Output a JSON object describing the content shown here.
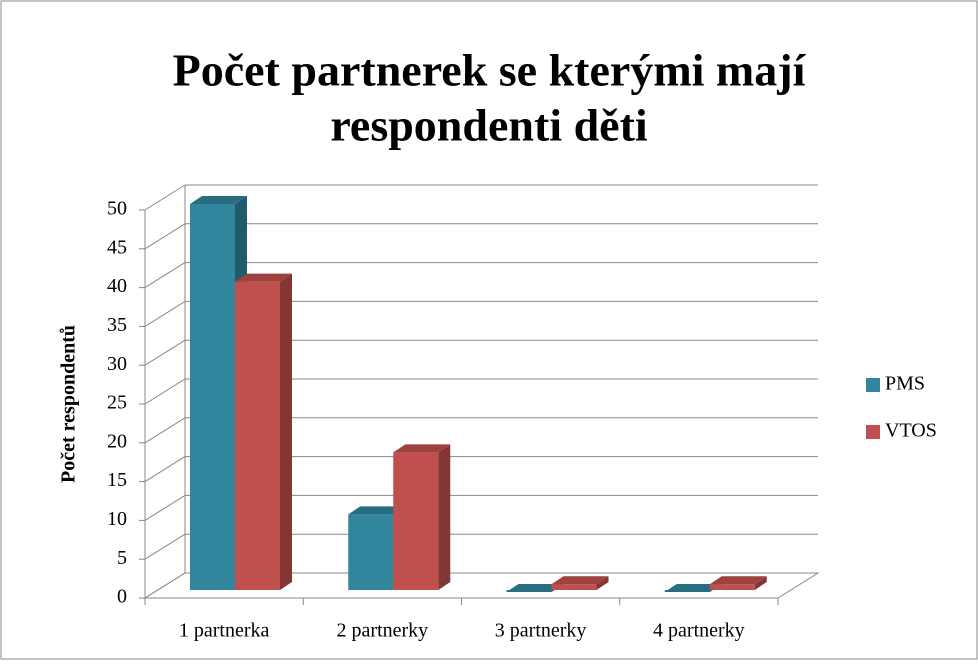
{
  "chart_data": {
    "type": "bar3d",
    "title": [
      "Počet partnerek se kterými mají",
      "respondenti děti"
    ],
    "ylabel": "Počet respondentů",
    "categories": [
      "1 partnerka",
      "2 partnerky",
      "3 partnerky",
      "4 partnerky"
    ],
    "series": [
      {
        "name": "PMS",
        "color": "#31859c",
        "values": [
          50,
          10,
          0,
          0
        ]
      },
      {
        "name": "VTOS",
        "color": "#c0504d",
        "values": [
          40,
          18,
          1,
          1
        ]
      }
    ],
    "ylim": [
      0,
      50
    ],
    "yticks": [
      0,
      5,
      10,
      15,
      20,
      25,
      30,
      35,
      40,
      45,
      50
    ],
    "grid": true,
    "legend": "right"
  }
}
